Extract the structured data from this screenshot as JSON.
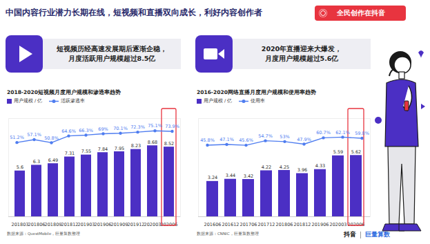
{
  "title": "中国内容行业潜力长期在线，短视频和直播双向成长，利好内容创作者",
  "badge": "全民创作在抖音",
  "footer": [
    "抖音",
    "巨量算数"
  ],
  "chart_data": [
    {
      "type": "bar",
      "subtitle": "短视频历经高速发展期后逐渐企稳，\n月度活跃用户规模超过8.5亿",
      "title": "2018-2020短视频月度用户规模和渗透率趋势",
      "source": "数据来源：QuestMobile，巨量算数整理",
      "categories": [
        "201803",
        "201806",
        "201809",
        "201812",
        "201903",
        "201906",
        "201909",
        "201912",
        "202003",
        "202006"
      ],
      "series": [
        {
          "name": "用户规模 / 亿",
          "type": "bar",
          "color": "#4b2fc4",
          "values": [
            5.6,
            6.3,
            6.49,
            7.31,
            7.55,
            7.84,
            7.95,
            8.23,
            8.68,
            8.52
          ]
        },
        {
          "name": "活跃渗透率",
          "type": "line",
          "axis": "y2",
          "color": "#4f7df0",
          "marker": "circle",
          "values": [
            51.2,
            57.1,
            50.8,
            64.6,
            66.3,
            69,
            70.1,
            72.3,
            75.1,
            73.9
          ],
          "value_labels": [
            "51.2%",
            "57.1%",
            "50.8%",
            "64.6%",
            "66.3%",
            "69%",
            "70.1%",
            "72.3%",
            "75.1%",
            "73.9%"
          ]
        }
      ],
      "ylim": [
        0,
        12
      ],
      "y2lim": [
        -100,
        100
      ],
      "tick_labels": "x",
      "data_labels": true,
      "legend": "top-left"
    },
    {
      "type": "bar",
      "subtitle": "2020年直播迎来大爆发，\n月度用户规模超过5.6亿",
      "title": "2016-2020网络直播月度用户规模和使用率趋势",
      "source": "数据来源：CNNIC，巨量算数整理",
      "categories": [
        "201606",
        "201612",
        "201706",
        "201712",
        "201806",
        "201812",
        "201906",
        "202003",
        "202006"
      ],
      "series": [
        {
          "name": "用户规模 / 亿",
          "type": "bar",
          "color": "#4b2fc4",
          "values": [
            3.24,
            3.44,
            3.42,
            4.22,
            4.25,
            3.96,
            4.33,
            5.59,
            5.62
          ]
        },
        {
          "name": "使用率",
          "type": "line",
          "axis": "y2",
          "color": "#4f7df0",
          "marker": "circle",
          "values": [
            45.8,
            47.1,
            45.6,
            54.7,
            53,
            47.9,
            60.7,
            62.1,
            59.8
          ],
          "value_labels": [
            "45.8%",
            "47.1%",
            "45.6%",
            "54.7%",
            "53%",
            "47.9%",
            "60.7%",
            "62.1%",
            "59.8%"
          ]
        }
      ],
      "ylim": [
        0,
        9
      ],
      "y2lim": [
        -100,
        100
      ],
      "tick_labels": "x",
      "data_labels": true,
      "legend": "top-left"
    }
  ]
}
